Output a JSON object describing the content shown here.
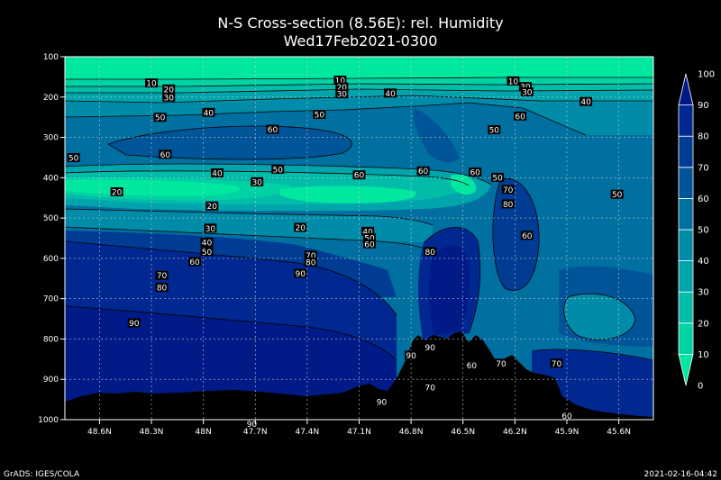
{
  "chart_data": {
    "type": "heatmap",
    "title": "N-S Cross-section (8.56E): rel. Humidity",
    "subtitle": "Wed17Feb2021-0300",
    "x_ticks": [
      "48.6N",
      "48.3N",
      "48N",
      "47.7N",
      "47.4N",
      "47.1N",
      "46.8N",
      "46.5N",
      "46.2N",
      "45.9N",
      "45.6N"
    ],
    "y_ticks": [
      "100",
      "200",
      "300",
      "400",
      "500",
      "600",
      "700",
      "800",
      "900",
      "1000"
    ],
    "colorbar": {
      "ticks": [
        "0",
        "10",
        "20",
        "30",
        "40",
        "50",
        "60",
        "70",
        "80",
        "90",
        "100"
      ],
      "colors": [
        "#00e8a0",
        "#00d2a4",
        "#00bca8",
        "#00a4ac",
        "#008ca8",
        "#0070a0",
        "#005498",
        "#003c94",
        "#002890",
        "#001a88"
      ]
    },
    "contour_labels": [
      {
        "text": "10",
        "lat": 48.3,
        "p": 165
      },
      {
        "text": "20",
        "lat": 48.2,
        "p": 180
      },
      {
        "text": "30",
        "lat": 48.2,
        "p": 200
      },
      {
        "text": "50",
        "lat": 48.25,
        "p": 250
      },
      {
        "text": "40",
        "lat": 47.97,
        "p": 238
      },
      {
        "text": "60",
        "lat": 47.6,
        "p": 280
      },
      {
        "text": "50",
        "lat": 47.33,
        "p": 243
      },
      {
        "text": "10",
        "lat": 47.21,
        "p": 158
      },
      {
        "text": "20",
        "lat": 47.2,
        "p": 175
      },
      {
        "text": "30",
        "lat": 47.2,
        "p": 192
      },
      {
        "text": "40",
        "lat": 46.92,
        "p": 190
      },
      {
        "text": "50",
        "lat": 46.32,
        "p": 281
      },
      {
        "text": "60",
        "lat": 46.17,
        "p": 247
      },
      {
        "text": "10",
        "lat": 46.21,
        "p": 160
      },
      {
        "text": "30",
        "lat": 46.14,
        "p": 174
      },
      {
        "text": "30",
        "lat": 46.13,
        "p": 187
      },
      {
        "text": "40",
        "lat": 45.79,
        "p": 211
      },
      {
        "text": "50",
        "lat": 48.75,
        "p": 350
      },
      {
        "text": "60",
        "lat": 48.22,
        "p": 342
      },
      {
        "text": "40",
        "lat": 47.92,
        "p": 388
      },
      {
        "text": "30",
        "lat": 47.69,
        "p": 410
      },
      {
        "text": "50",
        "lat": 47.57,
        "p": 379
      },
      {
        "text": "60",
        "lat": 47.1,
        "p": 393
      },
      {
        "text": "60",
        "lat": 46.73,
        "p": 383
      },
      {
        "text": "60",
        "lat": 46.43,
        "p": 386
      },
      {
        "text": "50",
        "lat": 46.3,
        "p": 399
      },
      {
        "text": "70",
        "lat": 46.24,
        "p": 429
      },
      {
        "text": "80",
        "lat": 46.24,
        "p": 465
      },
      {
        "text": "50",
        "lat": 45.61,
        "p": 441
      },
      {
        "text": "20",
        "lat": 48.5,
        "p": 435
      },
      {
        "text": "20",
        "lat": 47.95,
        "p": 470
      },
      {
        "text": "20",
        "lat": 47.44,
        "p": 523
      },
      {
        "text": "30",
        "lat": 47.96,
        "p": 525
      },
      {
        "text": "40",
        "lat": 47.98,
        "p": 560
      },
      {
        "text": "50",
        "lat": 47.98,
        "p": 583
      },
      {
        "text": "60",
        "lat": 48.05,
        "p": 608
      },
      {
        "text": "70",
        "lat": 48.24,
        "p": 642
      },
      {
        "text": "80",
        "lat": 48.24,
        "p": 672
      },
      {
        "text": "40",
        "lat": 47.05,
        "p": 533
      },
      {
        "text": "50",
        "lat": 47.04,
        "p": 549
      },
      {
        "text": "60",
        "lat": 47.04,
        "p": 564
      },
      {
        "text": "70",
        "lat": 47.38,
        "p": 592
      },
      {
        "text": "80",
        "lat": 47.38,
        "p": 609
      },
      {
        "text": "90",
        "lat": 47.44,
        "p": 637
      },
      {
        "text": "80",
        "lat": 46.69,
        "p": 583
      },
      {
        "text": "60",
        "lat": 46.13,
        "p": 543
      },
      {
        "text": "90",
        "lat": 48.4,
        "p": 760
      },
      {
        "text": "90",
        "lat": 46.8,
        "p": 840
      },
      {
        "text": "90",
        "lat": 46.69,
        "p": 820
      },
      {
        "text": "60",
        "lat": 46.45,
        "p": 865
      },
      {
        "text": "70",
        "lat": 46.28,
        "p": 860
      },
      {
        "text": "70",
        "lat": 45.96,
        "p": 860
      },
      {
        "text": "90",
        "lat": 46.97,
        "p": 955
      },
      {
        "text": "70",
        "lat": 46.69,
        "p": 920
      },
      {
        "text": "60",
        "lat": 45.9,
        "p": 990
      },
      {
        "text": "90",
        "lat": 47.72,
        "p": 1010
      }
    ]
  },
  "footer": {
    "left": "GrADS: IGES/COLA",
    "right": "2021-02-16-04:42"
  }
}
